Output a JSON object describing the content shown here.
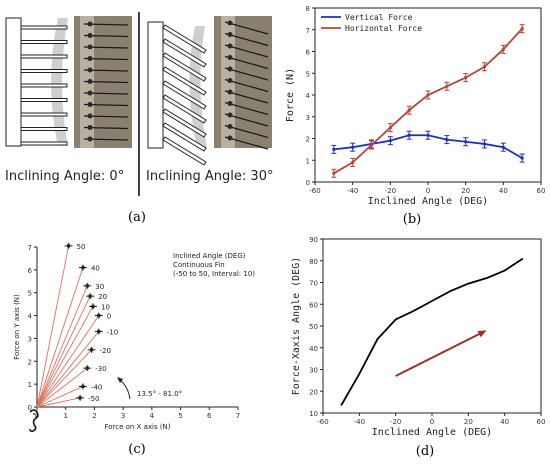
{
  "panels": {
    "a": {
      "tag": "(a)",
      "left_caption": "Inclining Angle: 0°",
      "right_caption": "Inclining Angle: 30°"
    },
    "b": {
      "tag": "(b)"
    },
    "c": {
      "tag": "(c)"
    },
    "d": {
      "tag": "(d)"
    }
  },
  "chart_data": [
    {
      "id": "b",
      "type": "line",
      "xlabel": "Inclined Angle (DEG)",
      "ylabel": "Force (N)",
      "xlim": [
        -60,
        60
      ],
      "ylim": [
        0,
        8
      ],
      "xticks": [
        -60,
        -40,
        -20,
        0,
        20,
        40,
        60
      ],
      "yticks": [
        0,
        1,
        2,
        3,
        4,
        5,
        6,
        7,
        8
      ],
      "legend_position": "top-left",
      "x": [
        -50,
        -40,
        -30,
        -20,
        -10,
        0,
        10,
        20,
        30,
        40,
        50
      ],
      "series": [
        {
          "name": "Vertical Force",
          "color": "#1f2fbf",
          "values": [
            1.5,
            1.6,
            1.75,
            1.9,
            2.15,
            2.15,
            1.95,
            1.85,
            1.75,
            1.6,
            1.1
          ]
        },
        {
          "name": "Horizontal Force",
          "color": "#b5443a",
          "values": [
            0.4,
            0.9,
            1.7,
            2.5,
            3.3,
            4.0,
            4.4,
            4.8,
            5.3,
            6.1,
            7.05
          ]
        }
      ]
    },
    {
      "id": "c",
      "type": "scatter",
      "xlabel": "Force on X axis (N)",
      "ylabel": "Force on Y axis (N)",
      "xlim": [
        0,
        7
      ],
      "ylim": [
        0,
        7
      ],
      "xticks": [
        0,
        1,
        2,
        3,
        4,
        5,
        6,
        7
      ],
      "yticks": [
        0,
        1,
        2,
        3,
        4,
        5,
        6,
        7
      ],
      "annotation_lines": [
        "Inclined Angle  (DEG)",
        "Continuous Fin",
        "(-50 to 50,  Interval: 10)"
      ],
      "arc_label": "13.5° - 81.0°",
      "ray_color": "#e07060",
      "points": [
        {
          "label": "50",
          "x": 1.1,
          "y": 7.05
        },
        {
          "label": "40",
          "x": 1.6,
          "y": 6.1
        },
        {
          "label": "30",
          "x": 1.75,
          "y": 5.3
        },
        {
          "label": "20",
          "x": 1.85,
          "y": 4.85
        },
        {
          "label": "10",
          "x": 1.95,
          "y": 4.4
        },
        {
          "label": "0",
          "x": 2.15,
          "y": 4.0
        },
        {
          "label": "-10",
          "x": 2.15,
          "y": 3.3
        },
        {
          "label": "-20",
          "x": 1.9,
          "y": 2.5
        },
        {
          "label": "-30",
          "x": 1.75,
          "y": 1.7
        },
        {
          "label": "-40",
          "x": 1.6,
          "y": 0.9
        },
        {
          "label": "-50",
          "x": 1.5,
          "y": 0.4
        }
      ]
    },
    {
      "id": "d",
      "type": "line",
      "xlabel": "Inclined Angle (DEG)",
      "ylabel": "Force-Xaxis Angle (DEG)",
      "xlim": [
        -60,
        60
      ],
      "ylim": [
        10,
        90
      ],
      "xticks": [
        -60,
        -40,
        -20,
        0,
        20,
        40,
        60
      ],
      "yticks": [
        10,
        20,
        30,
        40,
        50,
        60,
        70,
        80,
        90
      ],
      "line_color": "#000000",
      "arrow_color": "#a03020",
      "x": [
        -50,
        -40,
        -30,
        -20,
        -10,
        0,
        10,
        20,
        30,
        40,
        50
      ],
      "values": [
        13.5,
        28,
        44,
        53,
        57,
        61.5,
        66,
        69.5,
        72,
        75.5,
        81
      ],
      "arrow": {
        "from": [
          -20,
          27
        ],
        "to": [
          30,
          48
        ]
      }
    }
  ]
}
